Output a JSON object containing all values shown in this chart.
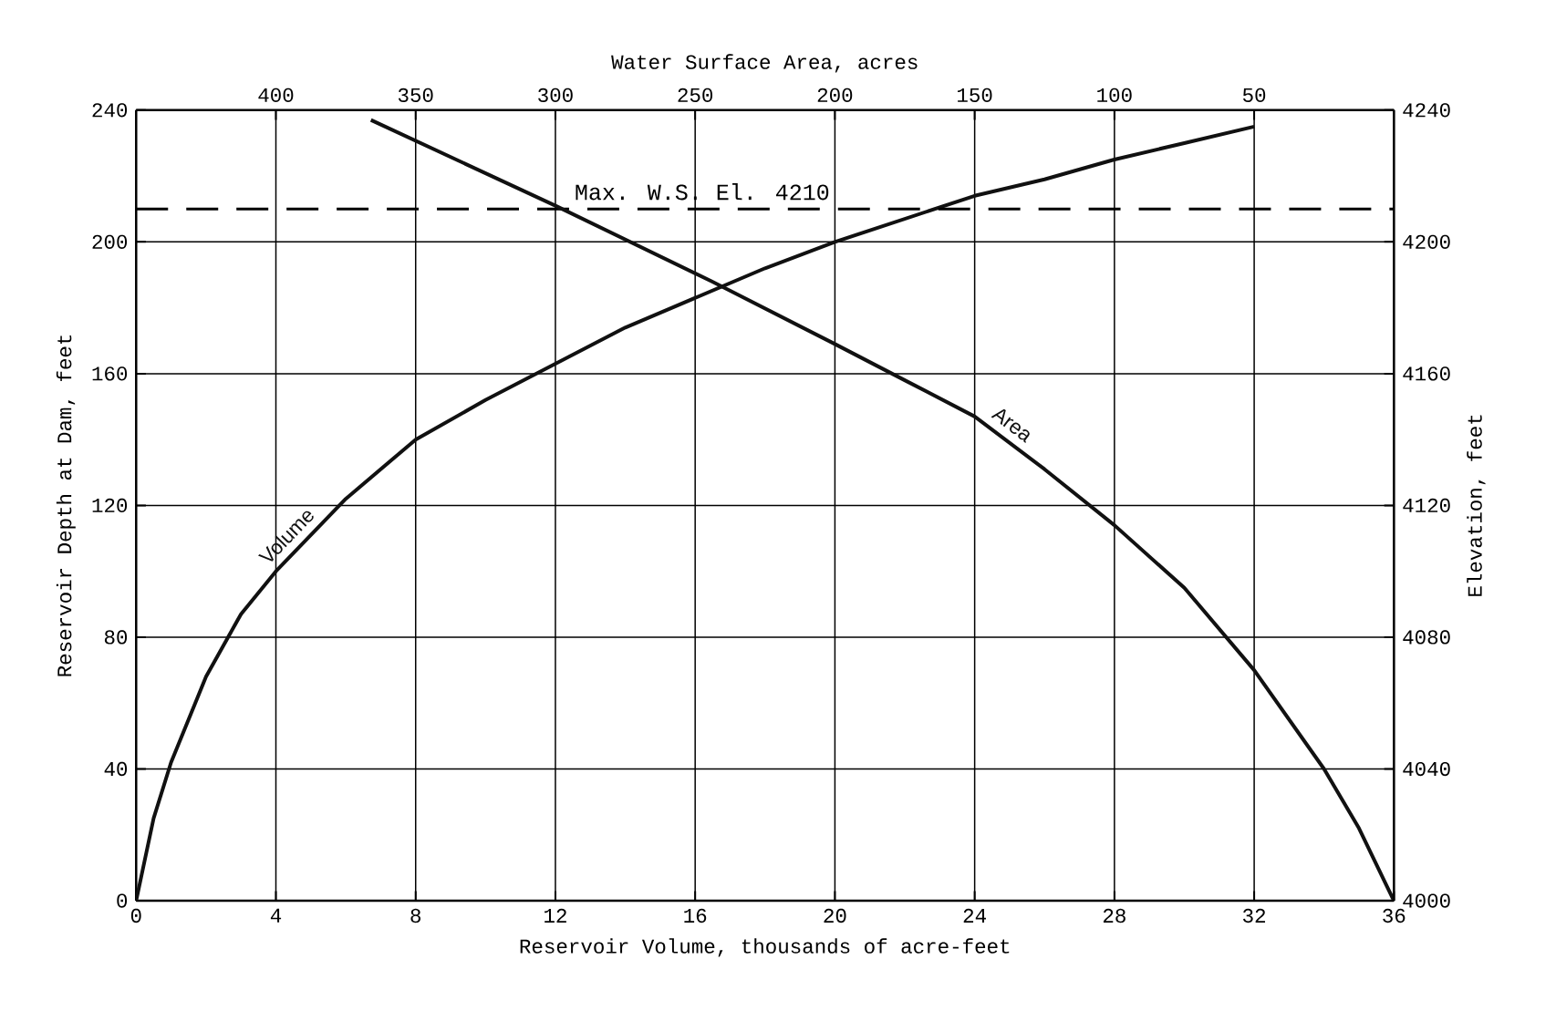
{
  "chart_data": {
    "type": "line",
    "xlabel": "Reservoir Volume, thousands of acre-feet",
    "ylabel": "Reservoir Depth at Dam, feet",
    "x2label": "Water Surface Area, acres",
    "y2label": "Elevation, feet",
    "xlim": [
      0,
      36
    ],
    "xticks": [
      0,
      4,
      8,
      12,
      16,
      20,
      24,
      28,
      32,
      36
    ],
    "ylim": [
      0,
      240
    ],
    "yticks": [
      0,
      40,
      80,
      120,
      160,
      200,
      240
    ],
    "x2lim": [
      450,
      0
    ],
    "x2ticks": [
      400,
      350,
      300,
      250,
      200,
      150,
      100,
      50
    ],
    "y2lim": [
      4000,
      4240
    ],
    "y2ticks": [
      4000,
      4040,
      4080,
      4120,
      4160,
      4200,
      4240
    ],
    "grid": true,
    "marker": "none",
    "line_style": "solid",
    "color": "#111111",
    "series": [
      {
        "name": "Volume",
        "x": [
          0,
          0.5,
          1,
          2,
          3,
          4,
          6,
          8,
          10,
          12,
          14,
          16,
          18,
          20,
          22,
          24,
          26,
          28,
          30,
          32
        ],
        "values": [
          0,
          25,
          42,
          68,
          87,
          100,
          122,
          140,
          152,
          163,
          174,
          183,
          192,
          200,
          207,
          214,
          219,
          225,
          230,
          235
        ]
      },
      {
        "name": "Area",
        "axis": "x2",
        "x": [
          366,
          300,
          244,
          200,
          175,
          150,
          125,
          100,
          75,
          50,
          25,
          12.5,
          0
        ],
        "values": [
          237,
          211,
          188,
          169,
          158,
          147,
          131,
          114,
          95,
          70,
          40,
          22,
          0
        ]
      }
    ],
    "ref_lines": [
      {
        "axis": "y",
        "value": 210,
        "label": "Max. W.S. El. 4210",
        "line_style": "dashed"
      }
    ]
  }
}
